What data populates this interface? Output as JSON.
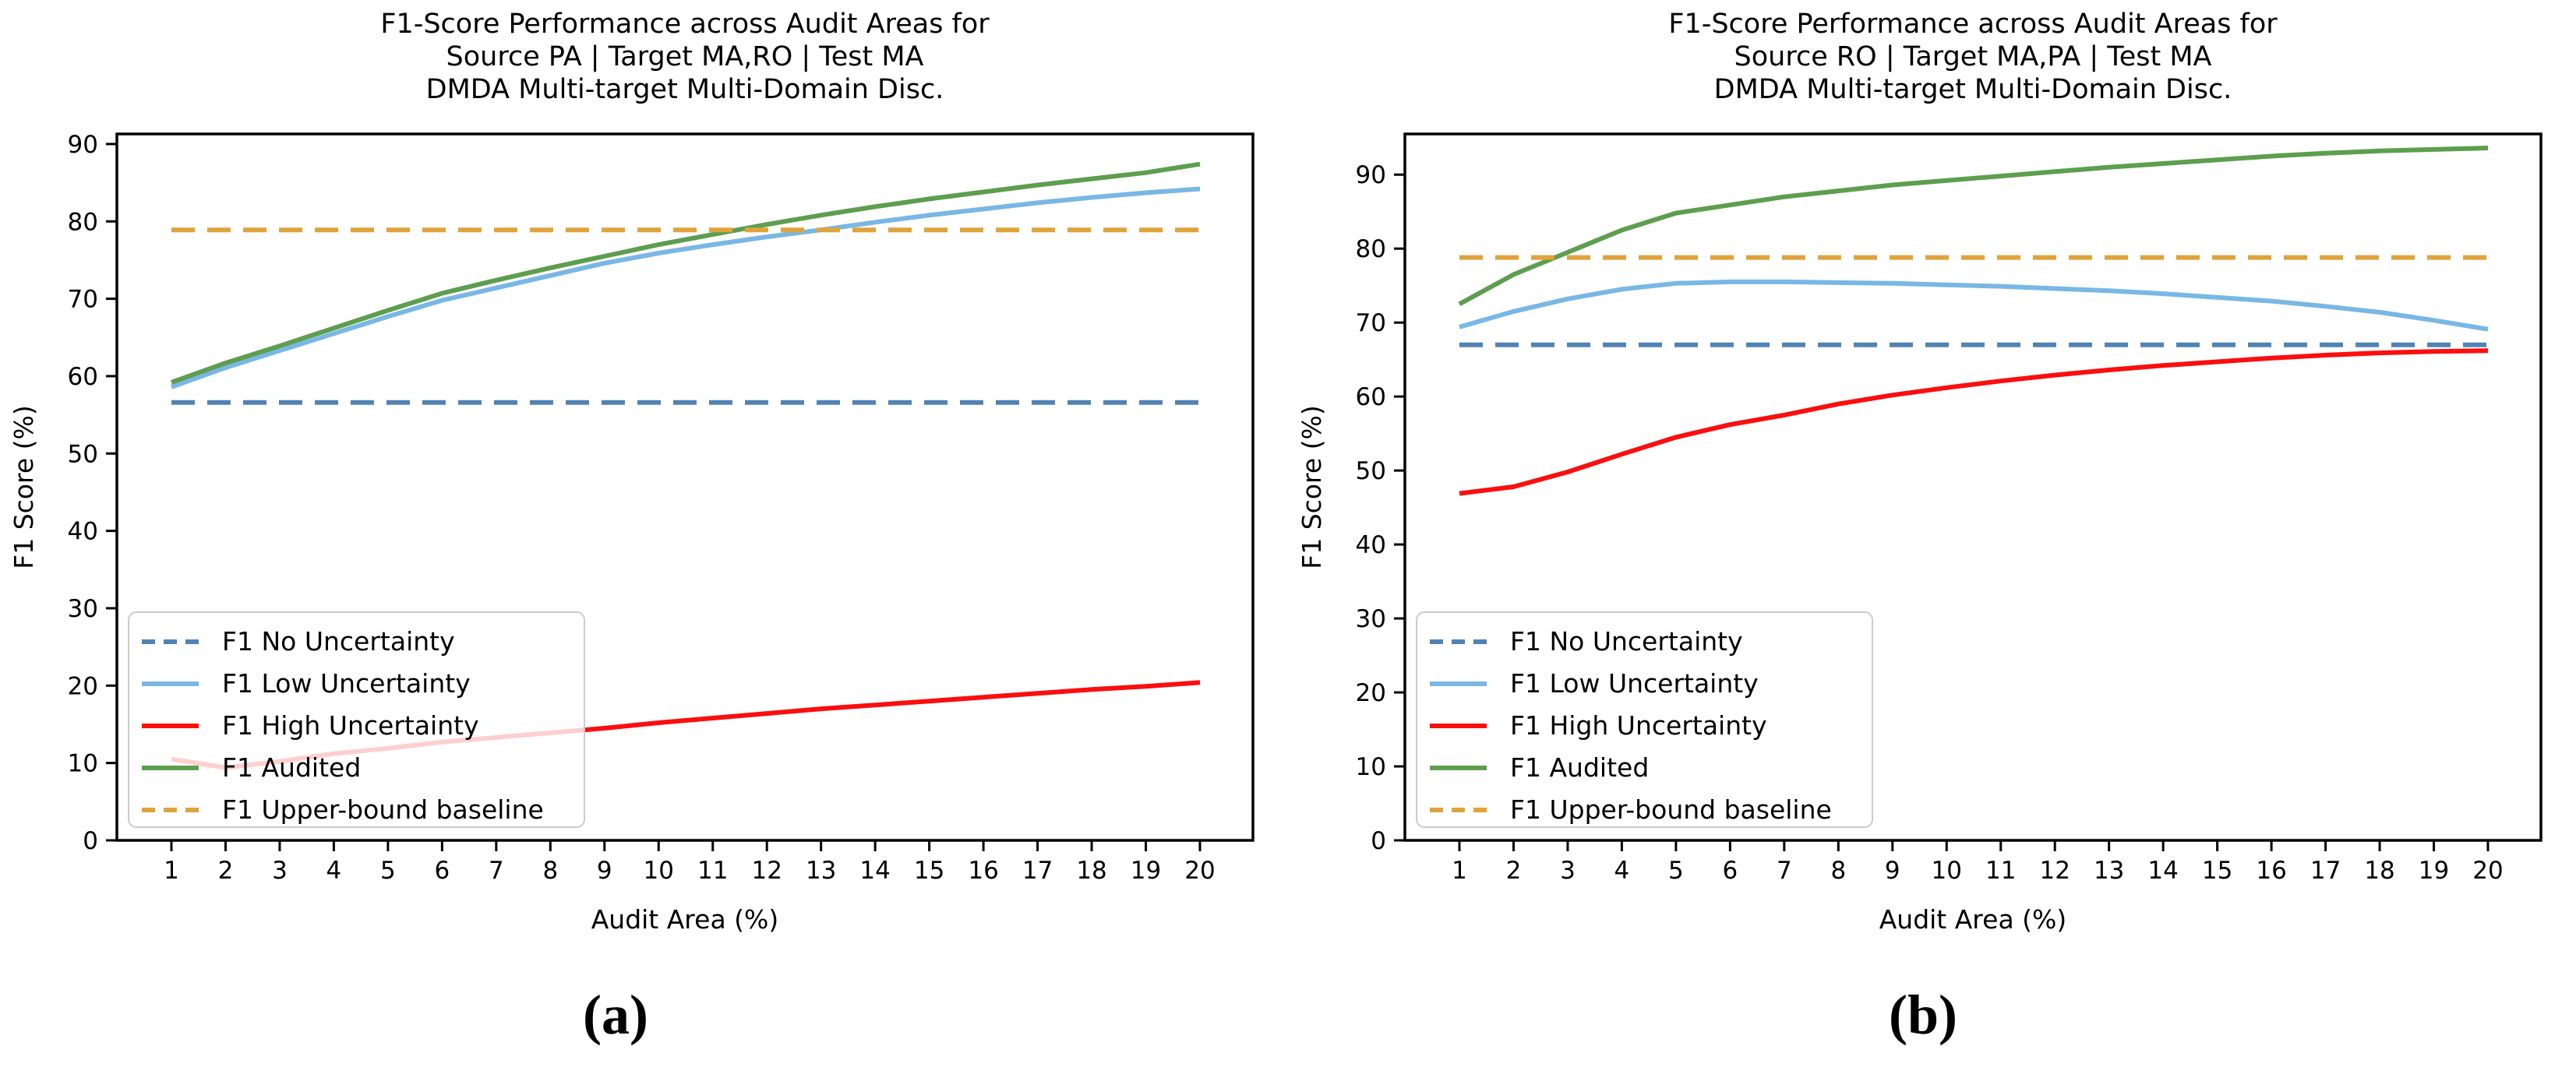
{
  "figure": {
    "background": "#ffffff",
    "captions": {
      "a": "(a)",
      "b": "(b)"
    }
  },
  "chart_data": [
    {
      "id": "a",
      "type": "line",
      "title_lines": [
        "F1-Score Performance across Audit Areas for",
        "Source PA | Target MA,RO | Test MA",
        "DMDA Multi-target Multi-Domain Disc."
      ],
      "xlabel": "Audit Area (%)",
      "ylabel": "F1 Score (%)",
      "x": [
        1,
        2,
        3,
        4,
        5,
        6,
        7,
        8,
        9,
        10,
        11,
        12,
        13,
        14,
        15,
        16,
        17,
        18,
        19,
        20
      ],
      "xticks": [
        1,
        2,
        3,
        4,
        5,
        6,
        7,
        8,
        9,
        10,
        11,
        12,
        13,
        14,
        15,
        16,
        17,
        18,
        19,
        20
      ],
      "yticks": [
        0,
        10,
        20,
        30,
        40,
        50,
        60,
        70,
        80,
        90
      ],
      "ylim": [
        0,
        91.3
      ],
      "grid": false,
      "legend_position": "lower left",
      "series": [
        {
          "name": "F1 No Uncertainty",
          "color": "#5083b5",
          "style": "dashed",
          "constant": 56.6
        },
        {
          "name": "F1 Low Uncertainty",
          "color": "#79b7e5",
          "style": "solid",
          "values": [
            58.6,
            61.1,
            63.3,
            65.5,
            67.7,
            69.8,
            71.4,
            73.0,
            74.6,
            75.9,
            77.0,
            78.0,
            78.9,
            79.9,
            80.8,
            81.6,
            82.4,
            83.1,
            83.7,
            84.2
          ]
        },
        {
          "name": "F1 High Uncertainty",
          "color": "#fa0f0f",
          "style": "solid",
          "values": [
            10.5,
            9.4,
            10.2,
            11.2,
            11.9,
            12.7,
            13.3,
            13.9,
            14.5,
            15.2,
            15.8,
            16.4,
            17.0,
            17.5,
            18.0,
            18.5,
            19.0,
            19.5,
            19.9,
            20.4
          ]
        },
        {
          "name": "F1 Audited",
          "color": "#5d9e4f",
          "style": "solid",
          "values": [
            59.2,
            61.7,
            63.9,
            66.2,
            68.5,
            70.7,
            72.4,
            74.0,
            75.5,
            77.0,
            78.3,
            79.6,
            80.8,
            81.9,
            82.9,
            83.8,
            84.7,
            85.5,
            86.3,
            87.4
          ]
        },
        {
          "name": "F1 Upper-bound baseline",
          "color": "#e0a33c",
          "style": "dashed",
          "constant": 78.9
        }
      ]
    },
    {
      "id": "b",
      "type": "line",
      "title_lines": [
        "F1-Score Performance across Audit Areas for",
        "Source RO | Target MA,PA | Test MA",
        "DMDA Multi-target Multi-Domain Disc."
      ],
      "xlabel": "Audit Area (%)",
      "ylabel": "F1 Score (%)",
      "x": [
        1,
        2,
        3,
        4,
        5,
        6,
        7,
        8,
        9,
        10,
        11,
        12,
        13,
        14,
        15,
        16,
        17,
        18,
        19,
        20
      ],
      "xticks": [
        1,
        2,
        3,
        4,
        5,
        6,
        7,
        8,
        9,
        10,
        11,
        12,
        13,
        14,
        15,
        16,
        17,
        18,
        19,
        20
      ],
      "yticks": [
        0,
        10,
        20,
        30,
        40,
        50,
        60,
        70,
        80,
        90
      ],
      "ylim": [
        0,
        95.5
      ],
      "grid": false,
      "legend_position": "lower left",
      "series": [
        {
          "name": "F1 No Uncertainty",
          "color": "#5083b5",
          "style": "dashed",
          "constant": 67.0
        },
        {
          "name": "F1 Low Uncertainty",
          "color": "#79b7e5",
          "style": "solid",
          "values": [
            69.4,
            71.5,
            73.2,
            74.5,
            75.3,
            75.5,
            75.5,
            75.4,
            75.3,
            75.1,
            74.9,
            74.6,
            74.3,
            73.9,
            73.4,
            72.9,
            72.2,
            71.4,
            70.3,
            69.1
          ]
        },
        {
          "name": "F1 High Uncertainty",
          "color": "#fa0f0f",
          "style": "solid",
          "values": [
            46.9,
            47.8,
            49.8,
            52.2,
            54.5,
            56.2,
            57.5,
            59.0,
            60.2,
            61.2,
            62.1,
            62.9,
            63.6,
            64.2,
            64.7,
            65.2,
            65.6,
            65.9,
            66.1,
            66.2
          ]
        },
        {
          "name": "F1 Audited",
          "color": "#5d9e4f",
          "style": "solid",
          "values": [
            72.5,
            76.5,
            79.5,
            82.5,
            84.8,
            85.9,
            87.0,
            87.8,
            88.6,
            89.2,
            89.8,
            90.4,
            91.0,
            91.5,
            92.0,
            92.5,
            92.9,
            93.2,
            93.4,
            93.6
          ]
        },
        {
          "name": "F1 Upper-bound baseline",
          "color": "#e0a33c",
          "style": "dashed",
          "constant": 78.8
        }
      ]
    }
  ]
}
